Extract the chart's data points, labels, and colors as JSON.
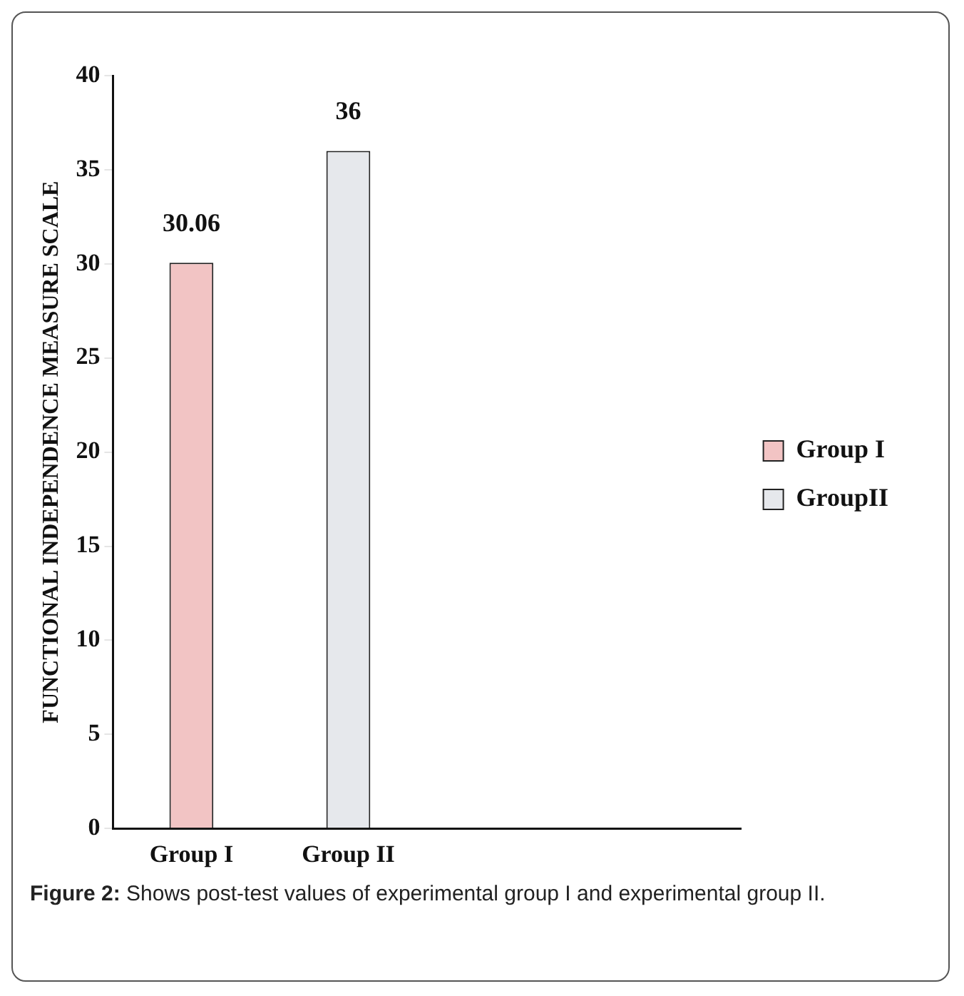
{
  "chart_data": {
    "type": "bar",
    "ylabel": "FUNCTIONAL INDEPENDENCE MEASURE SCALE",
    "categories": [
      "Group I",
      "Group II",
      null,
      null
    ],
    "series": [
      {
        "name": "Group I",
        "color": "#f2c4c4",
        "values": [
          30.06,
          null,
          null,
          null
        ]
      },
      {
        "name": "GroupII",
        "color": "#e6e8ec",
        "values": [
          null,
          36,
          null,
          null
        ]
      }
    ],
    "ylim": [
      0,
      40
    ],
    "yticks": [
      0,
      5,
      10,
      15,
      20,
      25,
      30,
      35,
      40
    ],
    "grid": false,
    "legend": "right",
    "data_labels": true,
    "annotations": [
      "Figure 2: Shows post-test values of experimental group I and experimental group II."
    ]
  }
}
